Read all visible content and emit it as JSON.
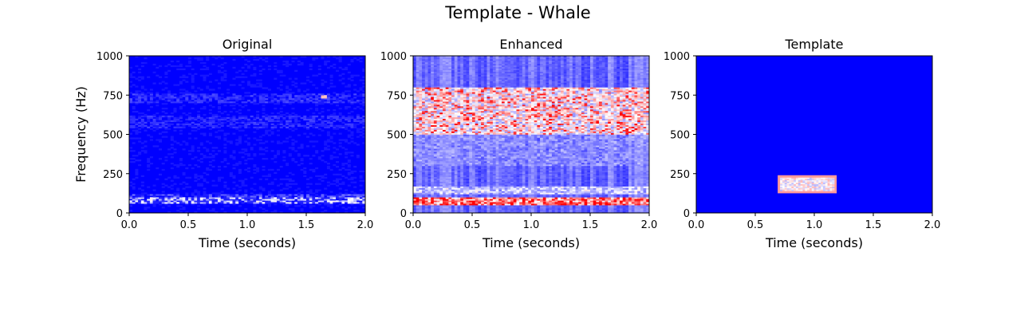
{
  "figure": {
    "title": "Template - Whale"
  },
  "colors": {
    "low": "#0000ff",
    "mid": "#ffffff",
    "high": "#ff0000"
  },
  "chart_data": [
    {
      "type": "heatmap",
      "title": "Original",
      "xlabel": "Time (seconds)",
      "ylabel": "Frequency (Hz)",
      "xlim": [
        0,
        2.0
      ],
      "ylim": [
        0,
        1000
      ],
      "xticks": [
        "0.0",
        "0.5",
        "1.0",
        "1.5",
        "2.0"
      ],
      "yticks": [
        "0",
        "250",
        "500",
        "750",
        "1000"
      ],
      "colormap": "bwr",
      "grid": false,
      "features": [
        {
          "kind": "band",
          "f_min": 60,
          "f_max": 95,
          "level": 0.5
        },
        {
          "kind": "band",
          "f_min": 100,
          "f_max": 120,
          "level": 0.2
        },
        {
          "kind": "band",
          "f_min": 700,
          "f_max": 760,
          "level": 0.12
        },
        {
          "kind": "band",
          "f_min": 540,
          "f_max": 620,
          "level": 0.1
        },
        {
          "kind": "spot",
          "t": 1.65,
          "f": 740,
          "level": 0.65
        }
      ]
    },
    {
      "type": "heatmap",
      "title": "Enhanced",
      "xlabel": "Time (seconds)",
      "ylabel": "",
      "xlim": [
        0,
        2.0
      ],
      "ylim": [
        0,
        1000
      ],
      "xticks": [
        "0.0",
        "0.5",
        "1.0",
        "1.5",
        "2.0"
      ],
      "yticks": [
        "0",
        "250",
        "500",
        "750",
        "1000"
      ],
      "colormap": "bwr",
      "grid": false,
      "features": [
        {
          "kind": "band",
          "f_min": 50,
          "f_max": 100,
          "level": 0.95
        },
        {
          "kind": "band",
          "f_min": 120,
          "f_max": 170,
          "level": 0.45
        },
        {
          "kind": "band",
          "f_min": 500,
          "f_max": 800,
          "level": 0.6
        },
        {
          "kind": "band",
          "f_min": 300,
          "f_max": 500,
          "level": 0.3
        }
      ]
    },
    {
      "type": "heatmap",
      "title": "Template",
      "xlabel": "Time (seconds)",
      "ylabel": "",
      "xlim": [
        0,
        2.0
      ],
      "ylim": [
        0,
        1000
      ],
      "xticks": [
        "0.0",
        "0.5",
        "1.0",
        "1.5",
        "2.0"
      ],
      "yticks": [
        "0",
        "250",
        "500",
        "750",
        "1000"
      ],
      "colormap": "bwr",
      "grid": false,
      "features": [
        {
          "kind": "box",
          "t_min": 0.69,
          "t_max": 1.19,
          "f_min": 125,
          "f_max": 240,
          "level": 0.7
        }
      ]
    }
  ]
}
